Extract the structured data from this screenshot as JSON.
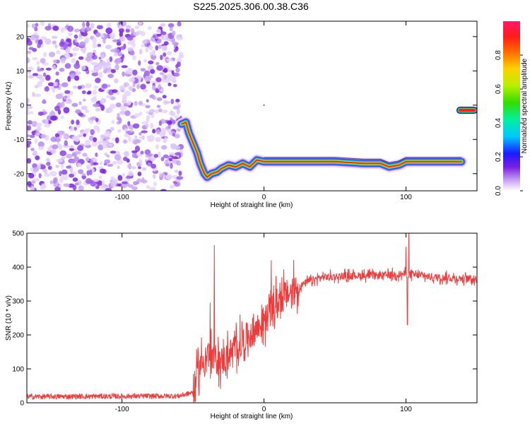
{
  "title": "S225.2025.306.00.38.C36",
  "chart_data": [
    {
      "type": "heatmap",
      "name": "spectrogram",
      "xlabel": "Height of straight line (km)",
      "ylabel": "Frequency (Hz)",
      "xlim": [
        -167,
        150
      ],
      "ylim": [
        -25,
        24.5
      ],
      "xticks": [
        -100,
        0,
        100
      ],
      "yticks": [
        -20,
        -10,
        0,
        10,
        20
      ],
      "colorbar": {
        "label": "Normalized spectral amplitude",
        "range": [
          0,
          1
        ],
        "ticks": [
          "0.0",
          "0.2",
          "0.4",
          "0.6",
          "0.8"
        ]
      },
      "noise_region": {
        "x_from": -167,
        "x_to": -58,
        "y_from": -25,
        "y_to": 24
      },
      "ridge": [
        {
          "x": -58,
          "y": -5.5
        },
        {
          "x": -55,
          "y": -5
        },
        {
          "x": -53,
          "y": -8
        },
        {
          "x": -51,
          "y": -10
        },
        {
          "x": -49,
          "y": -12
        },
        {
          "x": -47,
          "y": -14
        },
        {
          "x": -45,
          "y": -17
        },
        {
          "x": -42,
          "y": -20
        },
        {
          "x": -40,
          "y": -21
        },
        {
          "x": -37,
          "y": -20
        },
        {
          "x": -33,
          "y": -19.5
        },
        {
          "x": -30,
          "y": -18.5
        },
        {
          "x": -25,
          "y": -17.5
        },
        {
          "x": -20,
          "y": -18
        },
        {
          "x": -15,
          "y": -17
        },
        {
          "x": -10,
          "y": -18
        },
        {
          "x": -5,
          "y": -16
        },
        {
          "x": 0,
          "y": -16.5
        },
        {
          "x": 10,
          "y": -16.5
        },
        {
          "x": 30,
          "y": -16.5
        },
        {
          "x": 50,
          "y": -16.5
        },
        {
          "x": 70,
          "y": -17
        },
        {
          "x": 82,
          "y": -17
        },
        {
          "x": 88,
          "y": -18
        },
        {
          "x": 95,
          "y": -17.5
        },
        {
          "x": 100,
          "y": -16.5
        },
        {
          "x": 110,
          "y": -16.5
        },
        {
          "x": 139,
          "y": -16.5
        }
      ],
      "isolated_segment": {
        "x_from": 138,
        "x_to": 148,
        "y": -1.5
      },
      "dot": {
        "x": 0,
        "y": 0
      }
    },
    {
      "type": "line",
      "name": "snr",
      "xlabel": "Height of straight line (km)",
      "ylabel": "SNR (10 * v/v)",
      "xlim": [
        -167,
        150
      ],
      "ylim": [
        0,
        500
      ],
      "xticks": [
        -100,
        0,
        100
      ],
      "yticks": [
        0,
        100,
        200,
        300,
        400,
        500
      ],
      "color": "#ee3b3b",
      "trend": [
        {
          "x": -167,
          "y": 18
        },
        {
          "x": -60,
          "y": 20
        },
        {
          "x": -50,
          "y": 30
        },
        {
          "x": -45,
          "y": 110
        },
        {
          "x": -40,
          "y": 140
        },
        {
          "x": -30,
          "y": 120
        },
        {
          "x": -20,
          "y": 160
        },
        {
          "x": -10,
          "y": 200
        },
        {
          "x": 0,
          "y": 240
        },
        {
          "x": 10,
          "y": 300
        },
        {
          "x": 20,
          "y": 330
        },
        {
          "x": 30,
          "y": 355
        },
        {
          "x": 40,
          "y": 370
        },
        {
          "x": 60,
          "y": 375
        },
        {
          "x": 80,
          "y": 375
        },
        {
          "x": 100,
          "y": 380
        },
        {
          "x": 120,
          "y": 370
        },
        {
          "x": 150,
          "y": 365
        }
      ],
      "spikes": [
        {
          "x": -35,
          "y": 465
        },
        {
          "x": -38,
          "y": 295
        },
        {
          "x": 5,
          "y": 420
        },
        {
          "x": 100,
          "y": 460
        },
        {
          "x": 102,
          "y": 500
        },
        {
          "x": 101,
          "y": 230
        }
      ]
    }
  ]
}
